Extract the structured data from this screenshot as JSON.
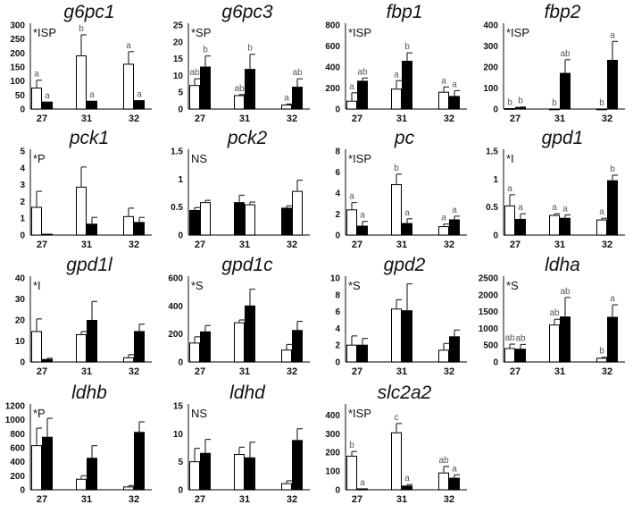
{
  "chart_data": [
    {
      "type": "bar",
      "title": "g6pc1",
      "annotation": "*ISP",
      "categories": [
        "27",
        "31",
        "32"
      ],
      "ylim": [
        0,
        300
      ],
      "ticks": [
        "0",
        "50",
        "100",
        "150",
        "200",
        "250",
        "300"
      ],
      "groups": [
        [
          {
            "fill": "white",
            "value": 75,
            "error": 28,
            "letter": "a"
          },
          {
            "fill": "black",
            "value": 25,
            "error": 0,
            "letter": "a"
          }
        ],
        [
          {
            "fill": "white",
            "value": 190,
            "error": 75,
            "letter": "b"
          },
          {
            "fill": "black",
            "value": 28,
            "error": 0,
            "letter": "a"
          }
        ],
        [
          {
            "fill": "white",
            "value": 160,
            "error": 45,
            "letter": "a"
          },
          {
            "fill": "black",
            "value": 30,
            "error": 0,
            "letter": "a"
          }
        ]
      ]
    },
    {
      "type": "bar",
      "title": "g6pc3",
      "annotation": "*SP",
      "categories": [
        "27",
        "31",
        "32"
      ],
      "ylim": [
        0,
        25
      ],
      "ticks": [
        "0",
        "5",
        "10",
        "15",
        "20",
        "25"
      ],
      "groups": [
        [
          {
            "fill": "white",
            "value": 7,
            "error": 2,
            "letter": "ab"
          },
          {
            "fill": "black",
            "value": 12.5,
            "error": 3.3,
            "letter": "b"
          }
        ],
        [
          {
            "fill": "white",
            "value": 4,
            "error": 0.3,
            "letter": "ab"
          },
          {
            "fill": "black",
            "value": 11.8,
            "error": 4.5,
            "letter": "b"
          }
        ],
        [
          {
            "fill": "white",
            "value": 1.2,
            "error": 0.3,
            "letter": "a"
          },
          {
            "fill": "black",
            "value": 6.5,
            "error": 2.5,
            "letter": "ab"
          }
        ]
      ]
    },
    {
      "type": "bar",
      "title": "fbp1",
      "annotation": "*ISP",
      "categories": [
        "27",
        "31",
        "32"
      ],
      "ylim": [
        0,
        800
      ],
      "ticks": [
        "0",
        "200",
        "400",
        "600",
        "800"
      ],
      "groups": [
        [
          {
            "fill": "white",
            "value": 75,
            "error": 80,
            "letter": "a"
          },
          {
            "fill": "black",
            "value": 265,
            "error": 30,
            "letter": "ab"
          }
        ],
        [
          {
            "fill": "white",
            "value": 190,
            "error": 80,
            "letter": "a"
          },
          {
            "fill": "black",
            "value": 455,
            "error": 80,
            "letter": "b"
          }
        ],
        [
          {
            "fill": "white",
            "value": 160,
            "error": 50,
            "letter": "a"
          },
          {
            "fill": "black",
            "value": 120,
            "error": 55,
            "letter": "a"
          }
        ]
      ]
    },
    {
      "type": "bar",
      "title": "fbp2",
      "annotation": "*ISP",
      "categories": [
        "27",
        "31",
        "32"
      ],
      "ylim": [
        0,
        400
      ],
      "ticks": [
        "0",
        "100",
        "200",
        "300",
        "400"
      ],
      "groups": [
        [
          {
            "fill": "white",
            "value": 2,
            "error": 0,
            "letter": "b"
          },
          {
            "fill": "black",
            "value": 8,
            "error": 2,
            "letter": "b"
          }
        ],
        [
          {
            "fill": "white",
            "value": 0,
            "error": 0,
            "letter": "b"
          },
          {
            "fill": "black",
            "value": 170,
            "error": 65,
            "letter": "ab"
          }
        ],
        [
          {
            "fill": "white",
            "value": 0,
            "error": 0,
            "letter": "b"
          },
          {
            "fill": "black",
            "value": 232,
            "error": 90,
            "letter": "a"
          }
        ]
      ]
    },
    {
      "type": "bar",
      "title": "pck1",
      "annotation": "*P",
      "categories": [
        "27",
        "31",
        "32"
      ],
      "ylim": [
        0,
        5
      ],
      "ticks": [
        "0",
        "1",
        "2",
        "3",
        "4",
        "5"
      ],
      "groups": [
        [
          {
            "fill": "white",
            "value": 1.65,
            "error": 0.95,
            "letter": ""
          },
          {
            "fill": "black",
            "value": 0.05,
            "error": 0,
            "letter": ""
          }
        ],
        [
          {
            "fill": "white",
            "value": 2.85,
            "error": 1.2,
            "letter": ""
          },
          {
            "fill": "black",
            "value": 0.65,
            "error": 0.4,
            "letter": ""
          }
        ],
        [
          {
            "fill": "white",
            "value": 1.1,
            "error": 0.5,
            "letter": ""
          },
          {
            "fill": "black",
            "value": 0.75,
            "error": 0.3,
            "letter": ""
          }
        ]
      ]
    },
    {
      "type": "bar",
      "title": "pck2",
      "annotation": "NS",
      "categories": [
        "27",
        "31",
        "32"
      ],
      "ylim": [
        0,
        1.5
      ],
      "ticks": [
        "0",
        "0.5",
        "1",
        "1.5"
      ],
      "groups": [
        [
          {
            "fill": "black",
            "value": 0.44,
            "error": 0.05,
            "letter": ""
          },
          {
            "fill": "white",
            "value": 0.58,
            "error": 0.04,
            "letter": ""
          }
        ],
        [
          {
            "fill": "black",
            "value": 0.58,
            "error": 0.13,
            "letter": ""
          },
          {
            "fill": "white",
            "value": 0.54,
            "error": 0.05,
            "letter": ""
          }
        ],
        [
          {
            "fill": "black",
            "value": 0.48,
            "error": 0.04,
            "letter": ""
          },
          {
            "fill": "white",
            "value": 0.78,
            "error": 0.2,
            "letter": ""
          }
        ]
      ]
    },
    {
      "type": "bar",
      "title": "pc",
      "annotation": "*ISP",
      "categories": [
        "27",
        "31",
        "32"
      ],
      "ylim": [
        0,
        8
      ],
      "ticks": [
        "0",
        "2",
        "4",
        "6",
        "8"
      ],
      "groups": [
        [
          {
            "fill": "white",
            "value": 2.4,
            "error": 0.7,
            "letter": "a"
          },
          {
            "fill": "black",
            "value": 0.85,
            "error": 0.45,
            "letter": "a"
          }
        ],
        [
          {
            "fill": "white",
            "value": 4.8,
            "error": 1,
            "letter": "b"
          },
          {
            "fill": "black",
            "value": 1.1,
            "error": 0.45,
            "letter": "a"
          }
        ],
        [
          {
            "fill": "white",
            "value": 0.8,
            "error": 0.25,
            "letter": "a"
          },
          {
            "fill": "black",
            "value": 1.45,
            "error": 0.35,
            "letter": "a"
          }
        ]
      ]
    },
    {
      "type": "bar",
      "title": "gpd1",
      "annotation": "*I",
      "categories": [
        "27",
        "31",
        "32"
      ],
      "ylim": [
        0,
        1.5
      ],
      "ticks": [
        "0",
        "0.5",
        "1",
        "1.5"
      ],
      "groups": [
        [
          {
            "fill": "white",
            "value": 0.52,
            "error": 0.2,
            "letter": "a"
          },
          {
            "fill": "black",
            "value": 0.28,
            "error": 0.1,
            "letter": "a"
          }
        ],
        [
          {
            "fill": "white",
            "value": 0.35,
            "error": 0.03,
            "letter": "a"
          },
          {
            "fill": "black",
            "value": 0.3,
            "error": 0.06,
            "letter": "a"
          }
        ],
        [
          {
            "fill": "white",
            "value": 0.27,
            "error": 0.03,
            "letter": "a"
          },
          {
            "fill": "black",
            "value": 0.97,
            "error": 0.1,
            "letter": "b"
          }
        ]
      ]
    },
    {
      "type": "bar",
      "title": "gpd1l",
      "annotation": "*I",
      "categories": [
        "27",
        "31",
        "32"
      ],
      "ylim": [
        0,
        40
      ],
      "ticks": [
        "0",
        "10",
        "20",
        "30",
        "40"
      ],
      "groups": [
        [
          {
            "fill": "white",
            "value": 14.5,
            "error": 6,
            "letter": ""
          },
          {
            "fill": "black",
            "value": 1.2,
            "error": 0.6,
            "letter": ""
          }
        ],
        [
          {
            "fill": "white",
            "value": 13,
            "error": 1.5,
            "letter": ""
          },
          {
            "fill": "black",
            "value": 19.8,
            "error": 9,
            "letter": ""
          }
        ],
        [
          {
            "fill": "white",
            "value": 2,
            "error": 1.5,
            "letter": ""
          },
          {
            "fill": "black",
            "value": 14.5,
            "error": 3.5,
            "letter": ""
          }
        ]
      ]
    },
    {
      "type": "bar",
      "title": "gpd1c",
      "annotation": "*S",
      "categories": [
        "27",
        "31",
        "32"
      ],
      "ylim": [
        0,
        600
      ],
      "ticks": [
        "0",
        "200",
        "400",
        "600"
      ],
      "groups": [
        [
          {
            "fill": "white",
            "value": 135,
            "error": 45,
            "letter": ""
          },
          {
            "fill": "black",
            "value": 215,
            "error": 45,
            "letter": ""
          }
        ],
        [
          {
            "fill": "white",
            "value": 280,
            "error": 20,
            "letter": ""
          },
          {
            "fill": "black",
            "value": 400,
            "error": 120,
            "letter": ""
          }
        ],
        [
          {
            "fill": "white",
            "value": 85,
            "error": 40,
            "letter": ""
          },
          {
            "fill": "black",
            "value": 225,
            "error": 65,
            "letter": ""
          }
        ]
      ]
    },
    {
      "type": "bar",
      "title": "gpd2",
      "annotation": "*S",
      "categories": [
        "27",
        "31",
        "32"
      ],
      "ylim": [
        0,
        10
      ],
      "ticks": [
        "0",
        "2",
        "4",
        "6",
        "8",
        "10"
      ],
      "groups": [
        [
          {
            "fill": "white",
            "value": 2,
            "error": 1.1,
            "letter": ""
          },
          {
            "fill": "black",
            "value": 2,
            "error": 0.8,
            "letter": ""
          }
        ],
        [
          {
            "fill": "white",
            "value": 6.3,
            "error": 1.1,
            "letter": ""
          },
          {
            "fill": "black",
            "value": 6.1,
            "error": 3.2,
            "letter": ""
          }
        ],
        [
          {
            "fill": "white",
            "value": 1.4,
            "error": 0.8,
            "letter": ""
          },
          {
            "fill": "black",
            "value": 3,
            "error": 0.8,
            "letter": ""
          }
        ]
      ]
    },
    {
      "type": "bar",
      "title": "ldha",
      "annotation": "*S",
      "categories": [
        "27",
        "31",
        "32"
      ],
      "ylim": [
        0,
        2500
      ],
      "ticks": [
        "0",
        "500",
        "1000",
        "1500",
        "2000",
        "2500"
      ],
      "groups": [
        [
          {
            "fill": "white",
            "value": 400,
            "error": 130,
            "letter": "ab"
          },
          {
            "fill": "black",
            "value": 380,
            "error": 140,
            "letter": "ab"
          }
        ],
        [
          {
            "fill": "white",
            "value": 1100,
            "error": 170,
            "letter": "ab"
          },
          {
            "fill": "black",
            "value": 1340,
            "error": 580,
            "letter": "ab"
          }
        ],
        [
          {
            "fill": "white",
            "value": 110,
            "error": 30,
            "letter": "b"
          },
          {
            "fill": "black",
            "value": 1330,
            "error": 370,
            "letter": "a"
          }
        ]
      ]
    },
    {
      "type": "bar",
      "title": "ldhb",
      "annotation": "*P",
      "categories": [
        "27",
        "31",
        "32"
      ],
      "ylim": [
        0,
        1200
      ],
      "ticks": [
        "0",
        "200",
        "400",
        "600",
        "800",
        "1000",
        "1200"
      ],
      "groups": [
        [
          {
            "fill": "white",
            "value": 630,
            "error": 250,
            "letter": ""
          },
          {
            "fill": "black",
            "value": 750,
            "error": 270,
            "letter": ""
          }
        ],
        [
          {
            "fill": "white",
            "value": 150,
            "error": 50,
            "letter": ""
          },
          {
            "fill": "black",
            "value": 450,
            "error": 180,
            "letter": ""
          }
        ],
        [
          {
            "fill": "white",
            "value": 40,
            "error": 20,
            "letter": ""
          },
          {
            "fill": "black",
            "value": 820,
            "error": 150,
            "letter": ""
          }
        ]
      ]
    },
    {
      "type": "bar",
      "title": "ldhd",
      "annotation": "NS",
      "categories": [
        "27",
        "31",
        "32"
      ],
      "ylim": [
        0,
        15
      ],
      "ticks": [
        "0",
        "5",
        "10",
        "15"
      ],
      "groups": [
        [
          {
            "fill": "white",
            "value": 5,
            "error": 2.4,
            "letter": ""
          },
          {
            "fill": "black",
            "value": 6.5,
            "error": 2.5,
            "letter": ""
          }
        ],
        [
          {
            "fill": "white",
            "value": 6.3,
            "error": 1.3,
            "letter": ""
          },
          {
            "fill": "black",
            "value": 5.7,
            "error": 2.8,
            "letter": ""
          }
        ],
        [
          {
            "fill": "white",
            "value": 1.1,
            "error": 0.5,
            "letter": ""
          },
          {
            "fill": "black",
            "value": 8.8,
            "error": 2.1,
            "letter": ""
          }
        ]
      ]
    },
    {
      "type": "bar",
      "title": "slc2a2",
      "annotation": "*ISP",
      "categories": [
        "27",
        "31",
        "32"
      ],
      "ylim": [
        0,
        450
      ],
      "ticks": [
        "0",
        "100",
        "200",
        "300",
        "400"
      ],
      "groups": [
        [
          {
            "fill": "white",
            "value": 180,
            "error": 25,
            "letter": "b"
          },
          {
            "fill": "black",
            "value": 5,
            "error": 0,
            "letter": "a"
          }
        ],
        [
          {
            "fill": "white",
            "value": 305,
            "error": 50,
            "letter": "c"
          },
          {
            "fill": "black",
            "value": 20,
            "error": 8,
            "letter": "a"
          }
        ],
        [
          {
            "fill": "white",
            "value": 90,
            "error": 35,
            "letter": "ab"
          },
          {
            "fill": "black",
            "value": 62,
            "error": 18,
            "letter": "a"
          }
        ]
      ]
    }
  ]
}
